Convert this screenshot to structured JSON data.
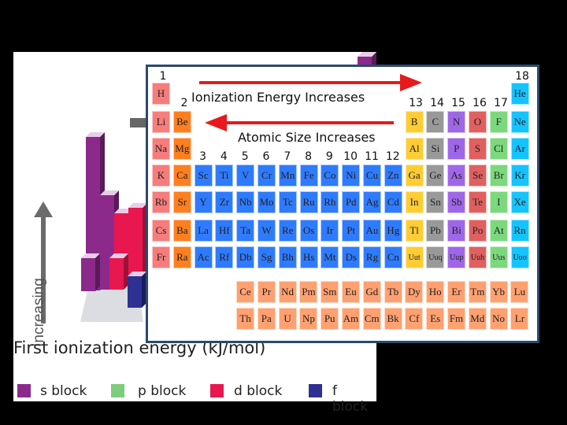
{
  "background_chart": {
    "title": "First ionization energy (kJ/mol)",
    "axis_label": "Increasing",
    "legend": [
      {
        "label": "s block",
        "color": "#8B2A8B"
      },
      {
        "label": "p block",
        "color": "#7CCD7C"
      },
      {
        "label": "d block",
        "color": "#E8174F"
      },
      {
        "label": "f block",
        "color": "#2E3192"
      }
    ]
  },
  "periodic_table": {
    "arrow_ie_label": "Ionization Energy Increases",
    "arrow_size_label": "Atomic Size Increases",
    "group_numbers": [
      "1",
      "2",
      "3",
      "4",
      "5",
      "6",
      "7",
      "8",
      "9",
      "10",
      "11",
      "12",
      "13",
      "14",
      "15",
      "16",
      "17",
      "18"
    ],
    "colors": {
      "alkali": "#F77C7C",
      "alkaline": "#FF7F1F",
      "transition": "#2F7BFF",
      "post": "#FFCC33",
      "metalloid": "#999999",
      "nonmetal": "#A066E8",
      "chalcogen": "#E0605F",
      "halogen": "#7CD87C",
      "noble": "#14C4FF",
      "fblock": "#FFA070",
      "hydrogen": "#F77C7C"
    },
    "main_rows": [
      [
        [
          "H",
          "hydrogen",
          1
        ],
        [
          "He",
          "noble",
          18
        ]
      ],
      [
        [
          "Li",
          "alkali",
          1
        ],
        [
          "Be",
          "alkaline",
          2
        ],
        [
          "B",
          "post",
          13
        ],
        [
          "C",
          "metalloid",
          14
        ],
        [
          "N",
          "nonmetal",
          15
        ],
        [
          "O",
          "chalcogen",
          16
        ],
        [
          "F",
          "halogen",
          17
        ],
        [
          "Ne",
          "noble",
          18
        ]
      ],
      [
        [
          "Na",
          "alkali",
          1
        ],
        [
          "Mg",
          "alkaline",
          2
        ],
        [
          "Al",
          "post",
          13
        ],
        [
          "Si",
          "metalloid",
          14
        ],
        [
          "P",
          "nonmetal",
          15
        ],
        [
          "S",
          "chalcogen",
          16
        ],
        [
          "Cl",
          "halogen",
          17
        ],
        [
          "Ar",
          "noble",
          18
        ]
      ],
      [
        [
          "K",
          "alkali",
          1
        ],
        [
          "Ca",
          "alkaline",
          2
        ],
        [
          "Sc",
          "transition",
          3
        ],
        [
          "Ti",
          "transition",
          4
        ],
        [
          "V",
          "transition",
          5
        ],
        [
          "Cr",
          "transition",
          6
        ],
        [
          "Mn",
          "transition",
          7
        ],
        [
          "Fe",
          "transition",
          8
        ],
        [
          "Co",
          "transition",
          9
        ],
        [
          "Ni",
          "transition",
          10
        ],
        [
          "Cu",
          "transition",
          11
        ],
        [
          "Zn",
          "transition",
          12
        ],
        [
          "Ga",
          "post",
          13
        ],
        [
          "Ge",
          "metalloid",
          14
        ],
        [
          "As",
          "nonmetal",
          15
        ],
        [
          "Se",
          "chalcogen",
          16
        ],
        [
          "Br",
          "halogen",
          17
        ],
        [
          "Kr",
          "noble",
          18
        ]
      ],
      [
        [
          "Rb",
          "alkali",
          1
        ],
        [
          "Sr",
          "alkaline",
          2
        ],
        [
          "Y",
          "transition",
          3
        ],
        [
          "Zr",
          "transition",
          4
        ],
        [
          "Nb",
          "transition",
          5
        ],
        [
          "Mo",
          "transition",
          6
        ],
        [
          "Tc",
          "transition",
          7
        ],
        [
          "Ru",
          "transition",
          8
        ],
        [
          "Rh",
          "transition",
          9
        ],
        [
          "Pd",
          "transition",
          10
        ],
        [
          "Ag",
          "transition",
          11
        ],
        [
          "Cd",
          "transition",
          12
        ],
        [
          "In",
          "post",
          13
        ],
        [
          "Sn",
          "metalloid",
          14
        ],
        [
          "Sb",
          "nonmetal",
          15
        ],
        [
          "Te",
          "chalcogen",
          16
        ],
        [
          "I",
          "halogen",
          17
        ],
        [
          "Xe",
          "noble",
          18
        ]
      ],
      [
        [
          "Cs",
          "alkali",
          1
        ],
        [
          "Ba",
          "alkaline",
          2
        ],
        [
          "La",
          "transition",
          3
        ],
        [
          "Hf",
          "transition",
          4
        ],
        [
          "Ta",
          "transition",
          5
        ],
        [
          "W",
          "transition",
          6
        ],
        [
          "Re",
          "transition",
          7
        ],
        [
          "Os",
          "transition",
          8
        ],
        [
          "Ir",
          "transition",
          9
        ],
        [
          "Pt",
          "transition",
          10
        ],
        [
          "Au",
          "transition",
          11
        ],
        [
          "Hg",
          "transition",
          12
        ],
        [
          "Tl",
          "post",
          13
        ],
        [
          "Pb",
          "metalloid",
          14
        ],
        [
          "Bi",
          "nonmetal",
          15
        ],
        [
          "Po",
          "chalcogen",
          16
        ],
        [
          "At",
          "halogen",
          17
        ],
        [
          "Rn",
          "noble",
          18
        ]
      ],
      [
        [
          "Fr",
          "alkali",
          1
        ],
        [
          "Ra",
          "alkaline",
          2
        ],
        [
          "Ac",
          "transition",
          3
        ],
        [
          "Rf",
          "transition",
          4
        ],
        [
          "Db",
          "transition",
          5
        ],
        [
          "Sg",
          "transition",
          6
        ],
        [
          "Bh",
          "transition",
          7
        ],
        [
          "Hs",
          "transition",
          8
        ],
        [
          "Mt",
          "transition",
          9
        ],
        [
          "Ds",
          "transition",
          10
        ],
        [
          "Rg",
          "transition",
          11
        ],
        [
          "Cn",
          "transition",
          12
        ],
        [
          "Uut",
          "post",
          13
        ],
        [
          "Uuq",
          "metalloid",
          14
        ],
        [
          "Uup",
          "nonmetal",
          15
        ],
        [
          "Uuh",
          "chalcogen",
          16
        ],
        [
          "Uus",
          "halogen",
          17
        ],
        [
          "Uuo",
          "noble",
          18
        ]
      ]
    ],
    "f_rows": [
      [
        "Ce",
        "Pr",
        "Nd",
        "Pm",
        "Sm",
        "Eu",
        "Gd",
        "Tb",
        "Dy",
        "Ho",
        "Er",
        "Tm",
        "Yb",
        "Lu"
      ],
      [
        "Th",
        "Pa",
        "U",
        "Np",
        "Pu",
        "Am",
        "Cm",
        "Bk",
        "Cf",
        "Es",
        "Fm",
        "Md",
        "No",
        "Lr"
      ]
    ]
  }
}
